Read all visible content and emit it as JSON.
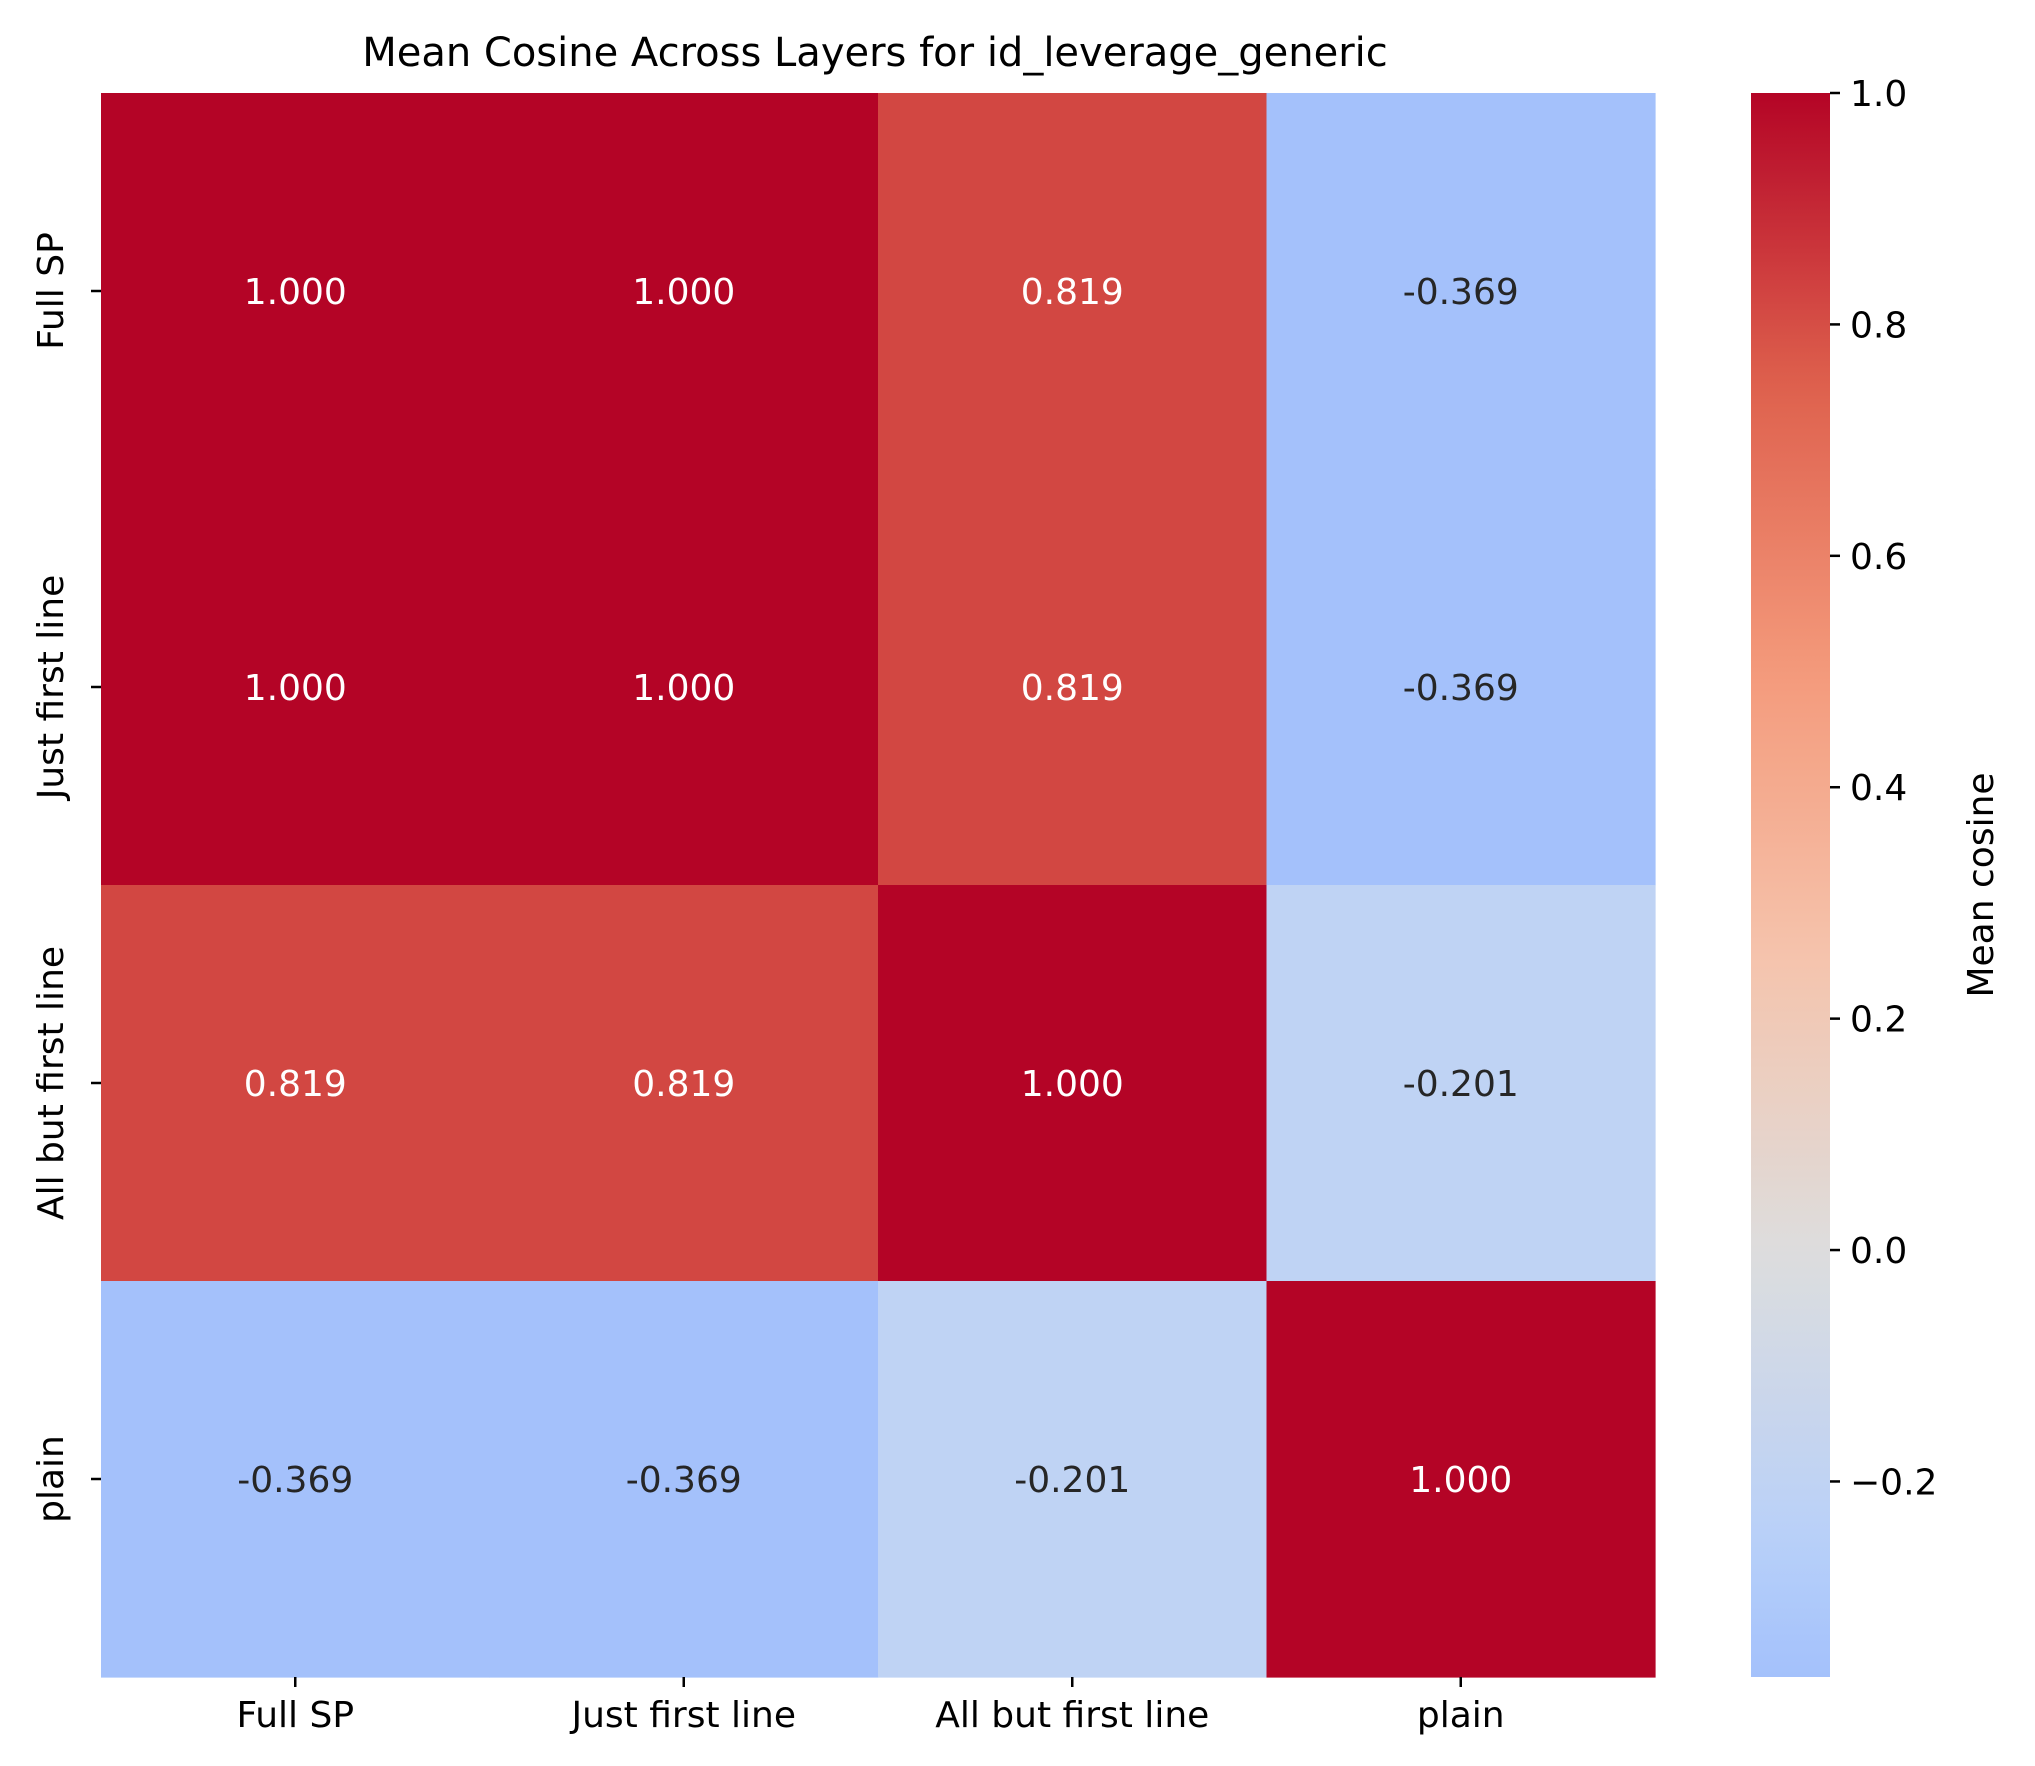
{
  "chart_data": {
    "type": "heatmap",
    "title": "Mean Cosine Across Layers for id_leverage_generic",
    "row_labels": [
      "Full SP",
      "Just first line",
      "All but first line",
      "plain"
    ],
    "col_labels": [
      "Full SP",
      "Just first line",
      "All but first line",
      "plain"
    ],
    "values": [
      [
        1.0,
        1.0,
        0.819,
        -0.369
      ],
      [
        1.0,
        1.0,
        0.819,
        -0.369
      ],
      [
        0.819,
        0.819,
        1.0,
        -0.201
      ],
      [
        -0.369,
        -0.369,
        -0.201,
        1.0
      ]
    ],
    "annotations": [
      [
        "1.000",
        "1.000",
        "0.819",
        "-0.369"
      ],
      [
        "1.000",
        "1.000",
        "0.819",
        "-0.369"
      ],
      [
        "0.819",
        "0.819",
        "1.000",
        "-0.201"
      ],
      [
        "-0.369",
        "-0.369",
        "-0.201",
        "1.000"
      ]
    ],
    "colormap": "coolwarm",
    "center": 0,
    "vmin": -0.369,
    "vmax": 1.0,
    "colorbar": {
      "label": "Mean cosine",
      "ticks": [
        1.0,
        0.8,
        0.6,
        0.4,
        0.2,
        0.0,
        -0.2
      ],
      "tick_labels": [
        "1.0",
        "0.8",
        "0.6",
        "0.4",
        "0.2",
        "0.0",
        "−0.2"
      ]
    },
    "colors": {
      "high": "#b40426",
      "mid": "#dddddd",
      "low": "#3b4cc0",
      "text_light": "#ffffff",
      "text_dark": "#262626"
    }
  }
}
